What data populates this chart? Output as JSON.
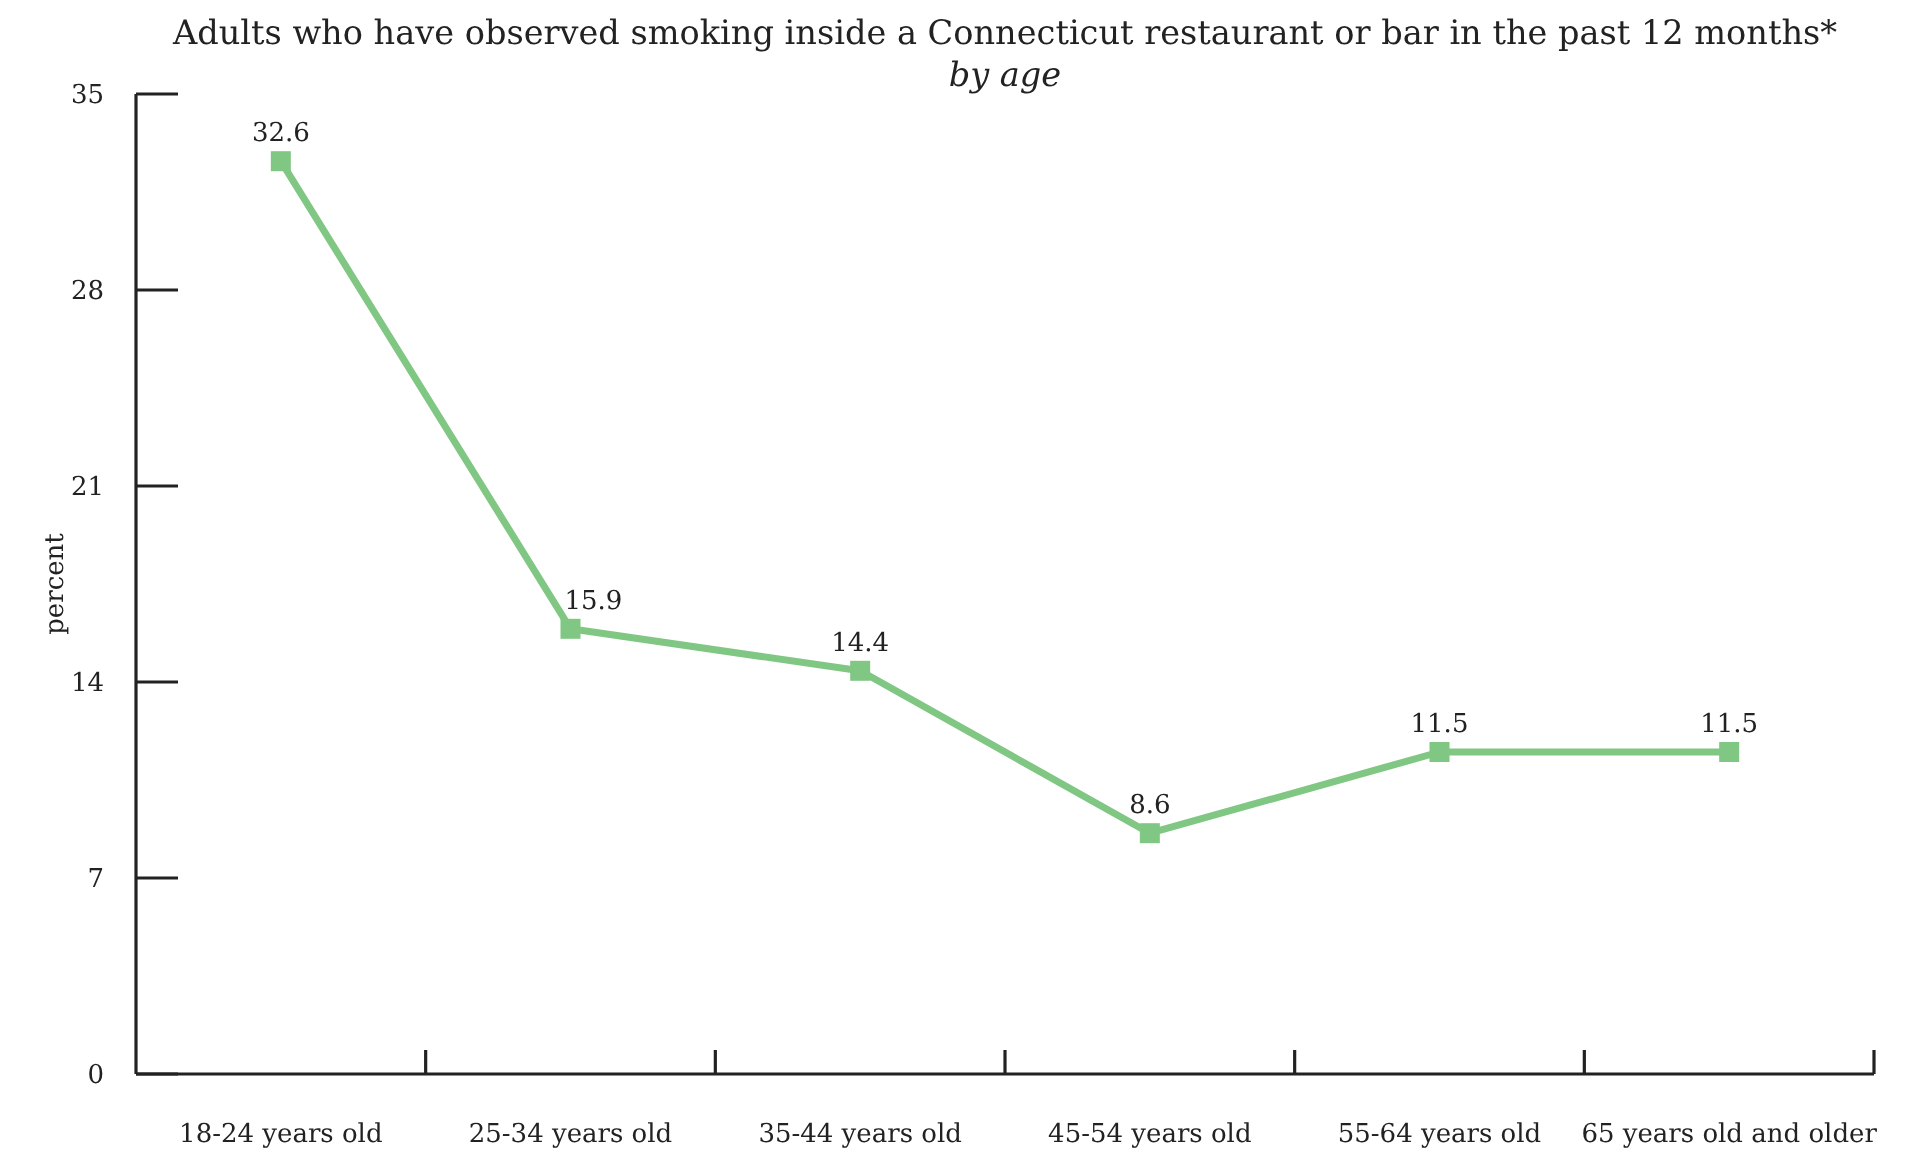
{
  "chart_data": {
    "type": "line",
    "title": "Adults who have observed smoking inside a Connecticut restaurant or bar in the past 12 months*",
    "subtitle": "by age",
    "ylabel": "percent",
    "categories": [
      "18-24 years old",
      "25-34 years old",
      "35-44 years old",
      "45-54 years old",
      "55-64 years old",
      "65 years old and older"
    ],
    "values": [
      32.6,
      15.9,
      14.4,
      8.6,
      11.5,
      11.5
    ],
    "color": "#80c784",
    "ylim": [
      0,
      35
    ],
    "yticks": [
      0,
      7,
      14,
      21,
      28,
      35
    ],
    "marker": "square",
    "line_style": "solid",
    "data_labels": true
  }
}
